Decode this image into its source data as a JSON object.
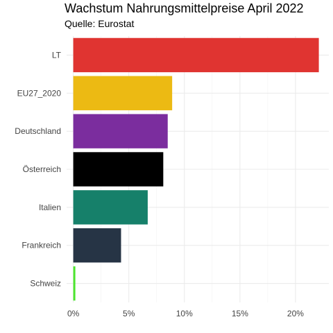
{
  "chart_data": {
    "type": "bar",
    "orientation": "horizontal",
    "title": "Wachstum Nahrungsmittelpreise April 2022",
    "subtitle": "Quelle: Eurostat",
    "xlabel": "",
    "ylabel": "",
    "categories": [
      "LT",
      "EU27_2020",
      "Deutschland",
      "Österreich",
      "Italien",
      "Frankreich",
      "Schweiz"
    ],
    "values": [
      22.1,
      8.9,
      8.5,
      8.1,
      6.7,
      4.3,
      0.1
    ],
    "colors": [
      "#e03431",
      "#ecba13",
      "#7b2d9e",
      "#000000",
      "#16806a",
      "#263445",
      "#4ce52e"
    ],
    "xlim": [
      -0.6,
      23.0
    ],
    "xticks": [
      0,
      5,
      10,
      15,
      20
    ],
    "xtick_labels": [
      "0%",
      "5%",
      "10%",
      "15%",
      "20%"
    ],
    "grid": true,
    "legend": "none"
  }
}
